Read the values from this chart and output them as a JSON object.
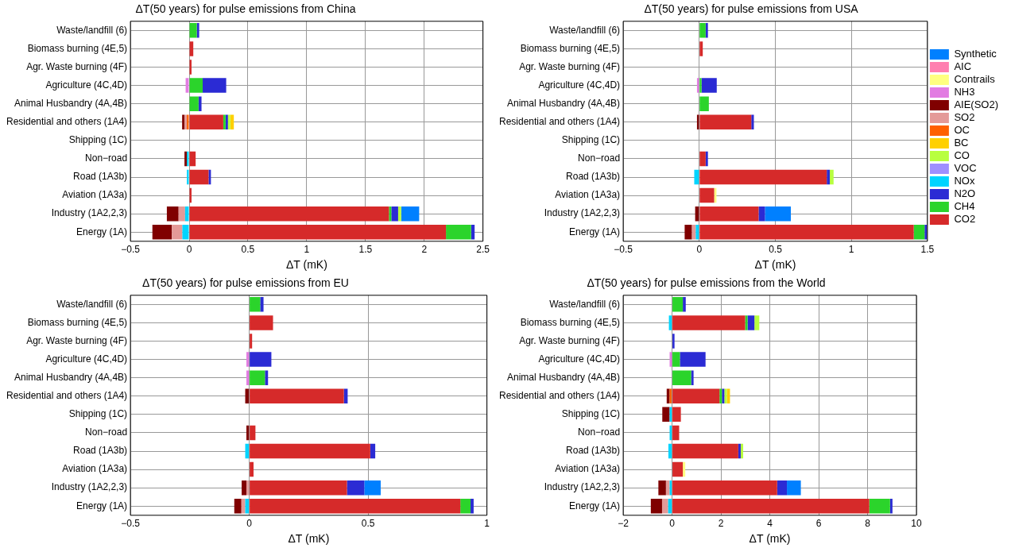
{
  "chart_data": [
    {
      "type": "bar",
      "orientation": "horizontal",
      "stacked": true,
      "grid": true,
      "legend": false,
      "title": "ΔT(50 years) for pulse emissions from China",
      "xlabel": "ΔT (mK)",
      "xlim": [
        -0.5,
        2.5
      ],
      "xticks": [
        -0.5,
        0,
        0.5,
        1,
        1.5,
        2,
        2.5
      ],
      "categories": [
        "Waste/landfill (6)",
        "Biomass burning (4E,5)",
        "Agr. Waste burning (4F)",
        "Agriculture (4C,4D)",
        "Animal Husbandry (4A,4B)",
        "Residential and others (1A4)",
        "Shipping (1C)",
        "Non−road",
        "Road (1A3b)",
        "Aviation (1A3a)",
        "Industry (1A2,2,3)",
        "Energy (1A)"
      ],
      "series": [
        {
          "color": "#d62a2a",
          "values": [
            null,
            0.035,
            0.02,
            null,
            null,
            0.29,
            null,
            0.055,
            0.165,
            0.02,
            1.7,
            2.185
          ]
        },
        {
          "color": "#2bd42b",
          "values": [
            0.065,
            null,
            null,
            0.115,
            0.08,
            0.02,
            null,
            null,
            null,
            null,
            0.02,
            0.214
          ]
        },
        {
          "color": "#2b2bd4",
          "values": [
            0.02,
            null,
            null,
            0.2,
            0.025,
            0.02,
            null,
            null,
            0.02,
            null,
            0.058,
            0.03
          ]
        },
        {
          "color": "#00d4ff",
          "values": [
            null,
            null,
            null,
            null,
            null,
            null,
            null,
            -0.02,
            -0.02,
            null,
            -0.035,
            -0.058
          ]
        },
        {
          "color": "#b8ff40",
          "values": [
            null,
            null,
            null,
            null,
            null,
            0.02,
            null,
            null,
            null,
            null,
            0.026,
            null
          ]
        },
        {
          "color": "#ffd000",
          "values": [
            null,
            null,
            null,
            null,
            null,
            0.03,
            null,
            null,
            null,
            null,
            null,
            null
          ]
        },
        {
          "color": "#ff6000",
          "values": [
            null,
            null,
            null,
            null,
            null,
            -0.02,
            null,
            null,
            null,
            null,
            null,
            null
          ]
        },
        {
          "color": "#e49a98",
          "values": [
            null,
            null,
            null,
            null,
            null,
            -0.02,
            null,
            null,
            null,
            null,
            -0.055,
            -0.09
          ]
        },
        {
          "color": "#800000",
          "values": [
            null,
            null,
            null,
            null,
            null,
            -0.02,
            null,
            -0.02,
            null,
            null,
            -0.1,
            -0.165
          ]
        },
        {
          "color": "#e27ce2",
          "values": [
            null,
            null,
            null,
            -0.03,
            null,
            null,
            null,
            null,
            null,
            null,
            null,
            null
          ]
        },
        {
          "color": "#0080ff",
          "values": [
            null,
            null,
            null,
            null,
            null,
            null,
            null,
            null,
            null,
            null,
            0.153,
            null
          ]
        }
      ]
    },
    {
      "type": "bar",
      "orientation": "horizontal",
      "stacked": true,
      "grid": true,
      "legend": "right",
      "title": "ΔT(50 years) for pulse emissions from USA",
      "xlabel": "ΔT (mK)",
      "xlim": [
        -0.5,
        1.5
      ],
      "xticks": [
        -0.5,
        0,
        0.5,
        1,
        1.5
      ],
      "categories": [
        "Waste/landfill (6)",
        "Biomass burning (4E,5)",
        "Agr. Waste burning (4F)",
        "Agriculture (4C,4D)",
        "Animal Husbandry (4A,4B)",
        "Residential and others (1A4)",
        "Shipping (1C)",
        "Non−road",
        "Road (1A3b)",
        "Aviation (1A3a)",
        "Industry (1A2,2,3)",
        "Energy (1A)"
      ],
      "series": [
        {
          "name": "CO2",
          "color": "#d62a2a",
          "values": [
            null,
            0.023,
            null,
            null,
            null,
            0.342,
            null,
            0.042,
            0.838,
            0.098,
            0.39,
            1.41
          ]
        },
        {
          "name": "CH4",
          "color": "#2bd42b",
          "values": [
            0.042,
            null,
            null,
            0.015,
            0.063,
            null,
            null,
            null,
            null,
            null,
            null,
            0.071
          ]
        },
        {
          "name": "N2O",
          "color": "#2b2bd4",
          "values": [
            0.015,
            null,
            null,
            0.1,
            null,
            0.017,
            null,
            0.015,
            0.02,
            null,
            0.042,
            0.015
          ]
        },
        {
          "name": "NOx",
          "color": "#00d4ff",
          "values": [
            null,
            null,
            null,
            null,
            null,
            null,
            null,
            null,
            -0.033,
            null,
            null,
            -0.023
          ]
        },
        {
          "name": "VOC",
          "color": "#9f8fff",
          "values": [
            null,
            null,
            null,
            null,
            null,
            null,
            null,
            null,
            null,
            null,
            null,
            null
          ]
        },
        {
          "name": "CO",
          "color": "#b8ff40",
          "values": [
            null,
            null,
            null,
            null,
            null,
            null,
            null,
            null,
            0.025,
            null,
            null,
            null
          ]
        },
        {
          "name": "BC",
          "color": "#ffd000",
          "values": [
            null,
            null,
            null,
            null,
            null,
            null,
            null,
            null,
            null,
            null,
            null,
            null
          ]
        },
        {
          "name": "OC",
          "color": "#ff6000",
          "values": [
            null,
            null,
            null,
            null,
            null,
            null,
            null,
            null,
            null,
            null,
            null,
            null
          ]
        },
        {
          "name": "SO2",
          "color": "#e49a98",
          "values": [
            null,
            null,
            null,
            null,
            null,
            null,
            null,
            null,
            null,
            null,
            null,
            -0.025
          ]
        },
        {
          "name": "AIE(SO2)",
          "color": "#800000",
          "values": [
            null,
            null,
            null,
            null,
            null,
            -0.015,
            null,
            null,
            null,
            null,
            -0.027,
            -0.048
          ]
        },
        {
          "name": "NH3",
          "color": "#e27ce2",
          "values": [
            null,
            null,
            null,
            -0.015,
            null,
            null,
            null,
            null,
            null,
            null,
            null,
            null
          ]
        },
        {
          "name": "Contrails",
          "color": "#ffff80",
          "values": [
            null,
            null,
            null,
            null,
            null,
            null,
            null,
            null,
            null,
            0.015,
            null,
            null
          ]
        },
        {
          "name": "AIC",
          "color": "#ff7fb0",
          "values": [
            null,
            null,
            null,
            null,
            null,
            null,
            null,
            null,
            null,
            null,
            null,
            null
          ]
        },
        {
          "name": "Synthetic",
          "color": "#0080ff",
          "values": [
            null,
            null,
            null,
            null,
            null,
            null,
            null,
            null,
            null,
            null,
            0.17,
            null
          ]
        }
      ]
    },
    {
      "type": "bar",
      "orientation": "horizontal",
      "stacked": true,
      "grid": true,
      "legend": false,
      "title": "ΔT(50 years) for pulse emissions from EU",
      "xlabel": "ΔT (mK)",
      "xlim": [
        -0.5,
        1
      ],
      "xticks": [
        -0.5,
        0,
        0.5,
        1
      ],
      "categories": [
        "Waste/landfill (6)",
        "Biomass burning (4E,5)",
        "Agr. Waste burning (4F)",
        "Agriculture (4C,4D)",
        "Animal Husbandry (4A,4B)",
        "Residential and others (1A4)",
        "Shipping (1C)",
        "Non−road",
        "Road (1A3b)",
        "Aviation (1A3a)",
        "Industry (1A2,2,3)",
        "Energy (1A)"
      ],
      "series": [
        {
          "color": "#d62a2a",
          "values": [
            null,
            0.1,
            0.012,
            null,
            null,
            0.398,
            null,
            0.026,
            0.509,
            0.018,
            0.411,
            0.888
          ]
        },
        {
          "color": "#2bd42b",
          "values": [
            0.046,
            null,
            null,
            null,
            0.066,
            null,
            null,
            null,
            null,
            null,
            null,
            0.043
          ]
        },
        {
          "color": "#2b2bd4",
          "values": [
            0.014,
            null,
            null,
            0.093,
            0.013,
            0.016,
            null,
            null,
            0.021,
            null,
            0.073,
            0.013
          ]
        },
        {
          "color": "#00d4ff",
          "values": [
            null,
            null,
            null,
            null,
            null,
            null,
            null,
            null,
            -0.017,
            null,
            null,
            -0.017
          ]
        },
        {
          "color": "#e49a98",
          "values": [
            null,
            null,
            null,
            null,
            null,
            null,
            null,
            null,
            null,
            null,
            -0.012,
            -0.016
          ]
        },
        {
          "color": "#800000",
          "values": [
            null,
            null,
            null,
            null,
            null,
            -0.017,
            null,
            -0.012,
            null,
            null,
            -0.02,
            -0.03
          ]
        },
        {
          "color": "#e27ce2",
          "values": [
            null,
            null,
            null,
            -0.012,
            -0.012,
            null,
            null,
            null,
            null,
            null,
            null,
            null
          ]
        },
        {
          "color": "#0080ff",
          "values": [
            null,
            null,
            null,
            null,
            null,
            null,
            null,
            null,
            null,
            null,
            0.069,
            null
          ]
        }
      ]
    },
    {
      "type": "bar",
      "orientation": "horizontal",
      "stacked": true,
      "grid": true,
      "legend": false,
      "title": "ΔT(50 years) for pulse emissions from the World",
      "xlabel": "ΔT (mK)",
      "xlim": [
        -2,
        10
      ],
      "xticks": [
        -2,
        0,
        2,
        4,
        6,
        8,
        10
      ],
      "categories": [
        "Waste/landfill (6)",
        "Biomass burning (4E,5)",
        "Agr. Waste burning (4F)",
        "Agriculture (4C,4D)",
        "Animal Husbandry (4A,4B)",
        "Residential and others (1A4)",
        "Shipping (1C)",
        "Non−road",
        "Road (1A3b)",
        "Aviation (1A3a)",
        "Industry (1A2,2,3)",
        "Energy (1A)"
      ],
      "series": [
        {
          "color": "#d62a2a",
          "values": [
            null,
            2.99,
            null,
            null,
            null,
            1.94,
            0.36,
            0.29,
            2.71,
            0.44,
            4.3,
            8.07
          ]
        },
        {
          "color": "#2bd42b",
          "values": [
            0.44,
            0.1,
            null,
            0.32,
            0.78,
            0.1,
            null,
            null,
            null,
            null,
            null,
            0.85
          ]
        },
        {
          "color": "#2b2bd4",
          "values": [
            0.12,
            0.28,
            0.1,
            1.05,
            0.1,
            0.1,
            null,
            null,
            0.1,
            null,
            0.4,
            0.1
          ]
        },
        {
          "color": "#00d4ff",
          "values": [
            null,
            -0.13,
            null,
            null,
            null,
            null,
            -0.1,
            -0.1,
            -0.15,
            null,
            -0.1,
            -0.16
          ]
        },
        {
          "color": "#b8ff40",
          "values": [
            null,
            0.2,
            null,
            null,
            null,
            0.1,
            null,
            null,
            0.1,
            null,
            null,
            null
          ]
        },
        {
          "color": "#ffd000",
          "values": [
            null,
            null,
            null,
            null,
            null,
            0.13,
            null,
            null,
            null,
            null,
            null,
            null
          ]
        },
        {
          "color": "#ff6000",
          "values": [
            null,
            null,
            null,
            null,
            null,
            -0.1,
            null,
            null,
            null,
            null,
            null,
            null
          ]
        },
        {
          "color": "#e49a98",
          "values": [
            null,
            null,
            null,
            null,
            null,
            null,
            null,
            null,
            null,
            null,
            -0.15,
            -0.25
          ]
        },
        {
          "color": "#800000",
          "values": [
            null,
            null,
            null,
            null,
            null,
            -0.12,
            -0.3,
            null,
            null,
            null,
            -0.31,
            -0.46
          ]
        },
        {
          "color": "#e27ce2",
          "values": [
            null,
            null,
            null,
            -0.1,
            null,
            null,
            null,
            null,
            null,
            null,
            null,
            null
          ]
        },
        {
          "color": "#ffff80",
          "values": [
            null,
            null,
            null,
            null,
            null,
            null,
            null,
            null,
            null,
            0.1,
            null,
            null
          ]
        },
        {
          "color": "#0080ff",
          "values": [
            null,
            null,
            null,
            null,
            null,
            null,
            null,
            null,
            null,
            null,
            0.57,
            null
          ]
        }
      ]
    }
  ]
}
